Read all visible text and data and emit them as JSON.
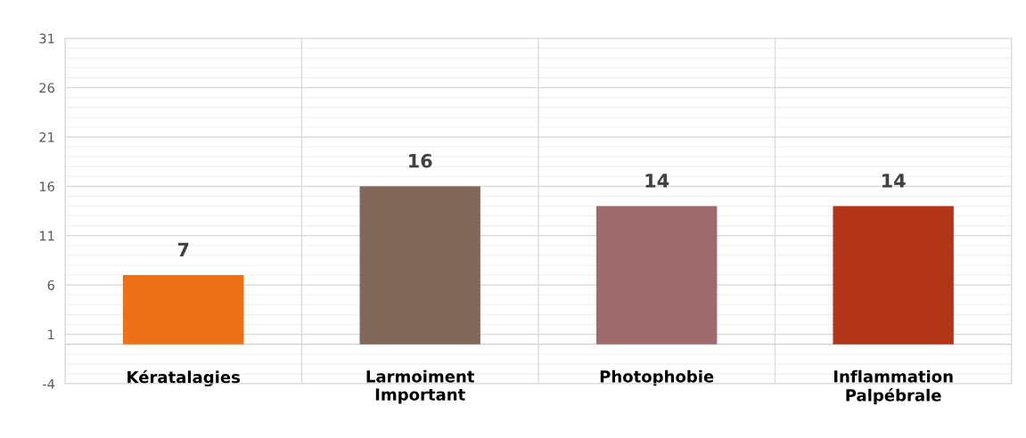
{
  "chart_data": {
    "type": "bar",
    "categories": [
      "Kératalagies",
      "Larmoiment\nImportant",
      "Photophobie",
      "Inflammation\nPalpébrale"
    ],
    "values": [
      7,
      16,
      14,
      14
    ],
    "colors": [
      "#ed7119",
      "#80695b",
      "#9d6b6b",
      "#b23416"
    ],
    "ylim": [
      -4,
      31
    ],
    "yticks": [
      -4,
      1,
      6,
      11,
      16,
      21,
      26,
      31
    ],
    "grid": true,
    "data_labels": true
  }
}
